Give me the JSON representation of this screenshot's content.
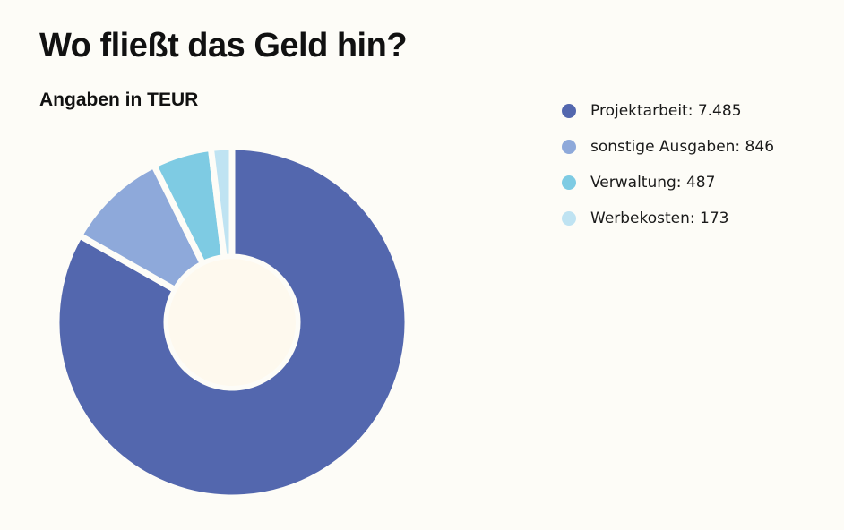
{
  "title": "Wo fließt das Geld hin?",
  "subtitle": "Angaben in TEUR",
  "chart_data": {
    "type": "pie",
    "title": "Wo fließt das Geld hin?",
    "subtitle": "Angaben in TEUR",
    "unit": "TEUR",
    "legend_position": "right",
    "slices": [
      {
        "label": "Projektarbeit",
        "value": 7485,
        "value_text": "7.485",
        "color": "#5367ae"
      },
      {
        "label": "sonstige Ausgaben",
        "value": 846,
        "value_text": "846",
        "color": "#8ea9da"
      },
      {
        "label": "Verwaltung",
        "value": 487,
        "value_text": "487",
        "color": "#7ecbe3"
      },
      {
        "label": "Werbekosten",
        "value": 173,
        "value_text": "173",
        "color": "#bfe3f2"
      }
    ]
  }
}
